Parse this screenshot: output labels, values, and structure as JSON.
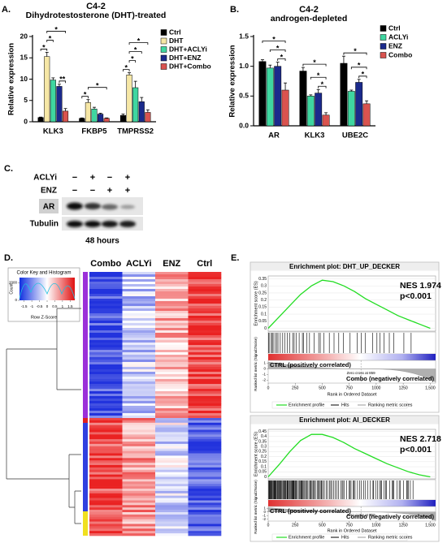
{
  "chart_data": [
    {
      "type": "bar",
      "panel": "A.",
      "title": "C4-2",
      "subtitle": "Dihydrotestosterone (DHT)-treated",
      "y_label": "Relative expression",
      "categories": [
        "KLK3",
        "FKBP5",
        "TMPRSS2"
      ],
      "series": [
        {
          "name": "Ctrl",
          "color": "#000000",
          "values": [
            1,
            0.8,
            1.5
          ],
          "errors": [
            0.1,
            0.1,
            0.3
          ]
        },
        {
          "name": "DHT",
          "color": "#f6e7a6",
          "values": [
            15.3,
            4.5,
            11
          ],
          "errors": [
            1,
            0.7,
            0.5
          ]
        },
        {
          "name": "DHT+ACLYi",
          "color": "#3fd6a0",
          "values": [
            9.8,
            3,
            8
          ],
          "errors": [
            0.5,
            0.4,
            1.5
          ]
        },
        {
          "name": "DHT+ENZ",
          "color": "#1b2a8c",
          "values": [
            8.3,
            1.8,
            4.7
          ],
          "errors": [
            0.5,
            0.2,
            1
          ]
        },
        {
          "name": "DHT+Combo",
          "color": "#d9534f",
          "values": [
            2.5,
            0.8,
            2.2
          ],
          "errors": [
            0.6,
            0.1,
            0.6
          ]
        }
      ],
      "ylim": [
        0,
        20
      ],
      "yticks": [
        0,
        5,
        10,
        15,
        20
      ],
      "significance": [
        {
          "category": 0,
          "series": [
            0,
            1
          ],
          "label": "*"
        },
        {
          "category": 0,
          "series": [
            1,
            2
          ],
          "label": "*"
        },
        {
          "category": 0,
          "series": [
            3,
            4
          ],
          "label": "**"
        },
        {
          "category": 0,
          "series": [
            1,
            4
          ],
          "label": "*"
        },
        {
          "category": 1,
          "series": [
            0,
            1
          ],
          "label": "*"
        },
        {
          "category": 1,
          "series": [
            1,
            4
          ],
          "label": "*"
        },
        {
          "category": 2,
          "series": [
            0,
            1
          ],
          "label": "*"
        },
        {
          "category": 2,
          "series": [
            1,
            2
          ],
          "label": "*"
        },
        {
          "category": 2,
          "series": [
            1,
            3
          ],
          "label": "*"
        },
        {
          "category": 2,
          "series": [
            1,
            4
          ],
          "label": "*"
        }
      ]
    },
    {
      "type": "bar",
      "panel": "B.",
      "title": "C4-2",
      "subtitle": "androgen-depleted",
      "y_label": "Relative expression",
      "categories": [
        "AR",
        "KLK3",
        "UBE2C"
      ],
      "series": [
        {
          "name": "Ctrl",
          "color": "#000000",
          "values": [
            1.08,
            0.92,
            1.05
          ],
          "errors": [
            0.03,
            0.06,
            0.12
          ]
        },
        {
          "name": "ACLYi",
          "color": "#3fd6a0",
          "values": [
            0.97,
            0.5,
            0.58
          ],
          "errors": [
            0.05,
            0.02,
            0.02
          ]
        },
        {
          "name": "ENZ",
          "color": "#1b2a8c",
          "values": [
            1,
            0.55,
            0.73
          ],
          "errors": [
            0.07,
            0.06,
            0.05
          ]
        },
        {
          "name": "Combo",
          "color": "#d9534f",
          "values": [
            0.6,
            0.18,
            0.37
          ],
          "errors": [
            0.12,
            0.04,
            0.05
          ]
        }
      ],
      "ylim": [
        0,
        1.5
      ],
      "yticks": [
        {
          "value": 0,
          "label": "0.0"
        },
        0.5,
        {
          "value": 1,
          "label": "1.0"
        },
        1.5
      ],
      "significance": [
        {
          "category": 0,
          "series": [
            2,
            3
          ],
          "label": "*"
        },
        {
          "category": 0,
          "series": [
            1,
            3
          ],
          "label": "*"
        },
        {
          "category": 0,
          "series": [
            0,
            3
          ],
          "label": "*"
        },
        {
          "category": 1,
          "series": [
            2,
            3
          ],
          "label": "*"
        },
        {
          "category": 1,
          "series": [
            1,
            3
          ],
          "label": "*"
        },
        {
          "category": 1,
          "series": [
            0,
            3
          ],
          "label": "*"
        },
        {
          "category": 2,
          "series": [
            2,
            3
          ],
          "label": "*"
        },
        {
          "category": 2,
          "series": [
            1,
            3
          ],
          "label": "*"
        },
        {
          "category": 2,
          "series": [
            0,
            3
          ],
          "label": "*"
        }
      ]
    },
    {
      "type": "gsea",
      "panel": "E.",
      "title": "Enrichment plot: DHT_UP_DECKER",
      "annotations": [
        "NES 1.974",
        "p<0.001"
      ],
      "y_label": "Enrichment score (ES)",
      "x": [
        0,
        100,
        200,
        300,
        400,
        500,
        600,
        700,
        800,
        900,
        1000,
        1100,
        1200,
        1300,
        1400,
        1500
      ],
      "series": [
        {
          "name": "Enrichment profile",
          "color": "#22dd22",
          "values": [
            0,
            0.08,
            0.16,
            0.24,
            0.3,
            0.34,
            0.33,
            0.3,
            0.26,
            0.21,
            0.17,
            0.13,
            0.09,
            0.06,
            0.03,
            0
          ]
        }
      ],
      "legend_extra": [
        "Hits",
        "Ranking metric scores"
      ],
      "ylim": [
        -0.02,
        0.37
      ],
      "yticks": [
        0,
        0.05,
        0.1,
        0.15,
        0.2,
        0.25,
        0.3,
        0.35
      ],
      "xlim": [
        0,
        1550
      ],
      "xticks": [
        0,
        250,
        500,
        750,
        1000,
        1250,
        {
          "value": 1500,
          "label": "1,500"
        }
      ],
      "x_label": "Rank in Ordered Dataset",
      "metric_label": "Ranked list metric (Signal2Noise)",
      "metric_ylim": [
        -2.5,
        1.5
      ],
      "metric_yticks": [
        1,
        0,
        -1,
        -2
      ],
      "positive_label": "CTRL (positively correlated)",
      "negative_label": "Combo (negatively correlated)",
      "zero_cross_rank": 859,
      "zero_cross_label": "Zero cross at 859"
    },
    {
      "type": "gsea",
      "title": "Enrichment plot: AI_DECKER",
      "annotations": [
        "NES 2.718",
        "p<0.001"
      ],
      "y_label": "Enrichment score (ES)",
      "x": [
        0,
        100,
        200,
        300,
        400,
        500,
        600,
        700,
        800,
        900,
        1000,
        1100,
        1200,
        1300,
        1400,
        1500
      ],
      "series": [
        {
          "name": "Enrichment profile",
          "color": "#22dd22",
          "values": [
            0,
            0.12,
            0.25,
            0.36,
            0.42,
            0.42,
            0.39,
            0.34,
            0.28,
            0.23,
            0.18,
            0.13,
            0.09,
            0.05,
            0.02,
            0
          ]
        }
      ],
      "legend_extra": [
        "Hits",
        "Ranking metric scores"
      ],
      "ylim": [
        -0.02,
        0.47
      ],
      "yticks": [
        0,
        0.05,
        0.1,
        0.15,
        0.2,
        0.25,
        0.3,
        0.35,
        0.4,
        0.45
      ],
      "xlim": [
        0,
        1550
      ],
      "xticks": [
        0,
        250,
        500,
        750,
        1000,
        1250,
        {
          "value": 1500,
          "label": "1,500"
        }
      ],
      "x_label": "Rank in Ordered Dataset",
      "metric_label": "Ranked list metric (Signal2Noise)",
      "metric_ylim": [
        -2.5,
        1.5
      ],
      "metric_yticks": [
        1,
        0,
        -1,
        -2
      ],
      "positive_label": "CTRL (positively correlated)",
      "negative_label": "Combo (negatively correlated)",
      "zero_cross_rank": 859,
      "zero_cross_label": "Zero cross at 859"
    }
  ],
  "blot": {
    "panel": "C.",
    "rows": [
      {
        "label": "ACLYi",
        "signs": [
          "−",
          "+",
          "−",
          "+"
        ]
      },
      {
        "label": "ENZ",
        "signs": [
          "−",
          "−",
          "+",
          "+"
        ]
      }
    ],
    "bands": [
      "AR",
      "Tubulin"
    ],
    "footer": "48 hours"
  },
  "heatmap": {
    "panel": "D.",
    "columns": [
      "Combo",
      "ACLYi",
      "ENZ",
      "Ctrl"
    ],
    "key_title": "Color Key and Histogram",
    "key_xlabel": "Row Z-Score",
    "key_xlim": [
      -1.8,
      1.8
    ],
    "key_xticks": [
      -1.5,
      -1,
      -0.5,
      0,
      0.5,
      1,
      1.5
    ],
    "key_ylabel": "Count",
    "key_ylim": [
      0,
      2600
    ],
    "key_yticks": [
      0,
      2000
    ]
  }
}
